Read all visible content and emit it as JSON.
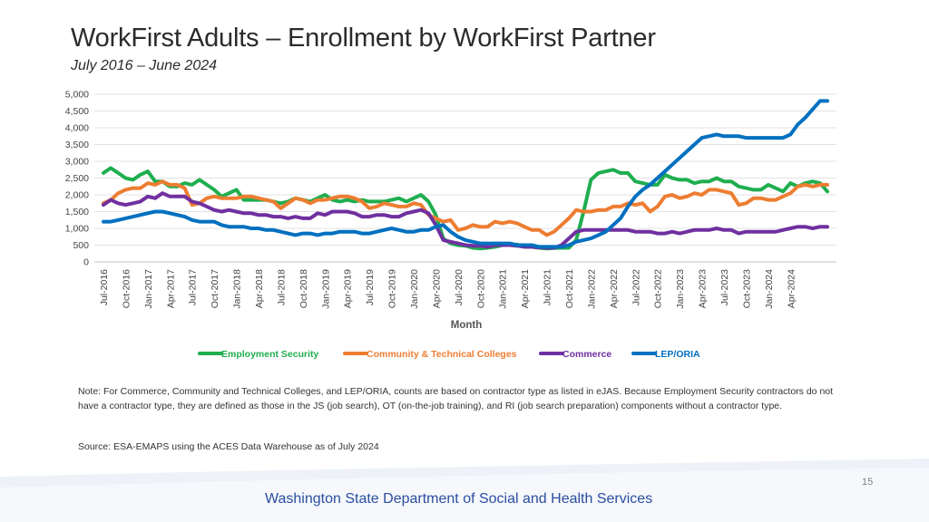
{
  "slide": {
    "title": "WorkFirst Adults – Enrollment by WorkFirst Partner",
    "subtitle": "July 2016 – June 2024",
    "note": "Note: For Commerce, Community and Technical Colleges, and LEP/ORIA, counts are based on contractor type as listed in eJAS. Because Employment Security contractors do not have a contractor type, they are defined as those in the JS (job search), OT (on-the-job training), and RI (job search preparation) components without a contractor type.",
    "source": "Source: ESA-EMAPS using the ACES Data Warehouse as of July 2024",
    "page_number": "15",
    "footer": "Washington State Department of Social and Health Services"
  },
  "chart_data": {
    "type": "line",
    "title": "",
    "xlabel": "Month",
    "ylabel": "",
    "ylim": [
      0,
      5000
    ],
    "yticks": [
      0,
      500,
      1000,
      1500,
      2000,
      2500,
      3000,
      3500,
      4000,
      4500,
      5000
    ],
    "ytick_labels": [
      "0",
      "500",
      "1,000",
      "1,500",
      "2,000",
      "2,500",
      "3,000",
      "3,500",
      "4,000",
      "4,500",
      "5,000"
    ],
    "xtick_labels": [
      "Jul-2016",
      "Oct-2016",
      "Jan-2017",
      "Apr-2017",
      "Jul-2017",
      "Oct-2017",
      "Jan-2018",
      "Apr-2018",
      "Jul-2018",
      "Oct-2018",
      "Jan-2019",
      "Apr-2019",
      "Jul-2019",
      "Oct-2019",
      "Jan-2020",
      "Apr-2020",
      "Jul-2020",
      "Oct-2020",
      "Jan-2021",
      "Apr-2021",
      "Jul-2021",
      "Oct-2021",
      "Jan-2022",
      "Apr-2022",
      "Jul-2022",
      "Oct-2022",
      "Jan-2023",
      "Apr-2023",
      "Jul-2023",
      "Oct-2023",
      "Jan-2024",
      "Apr-2024"
    ],
    "grid": true,
    "legend_position": "bottom",
    "series": [
      {
        "name": "Employment Security",
        "color": "#1fae4f",
        "values": [
          2650,
          2800,
          2650,
          2500,
          2450,
          2600,
          2700,
          2400,
          2400,
          2250,
          2250,
          2350,
          2300,
          2450,
          2300,
          2150,
          1950,
          2050,
          2150,
          1850,
          1850,
          1850,
          1850,
          1800,
          1750,
          1800,
          1900,
          1850,
          1800,
          1900,
          2000,
          1850,
          1800,
          1850,
          1800,
          1850,
          1800,
          1800,
          1800,
          1850,
          1900,
          1800,
          1900,
          2000,
          1800,
          1400,
          700,
          550,
          500,
          480,
          420,
          400,
          420,
          450,
          500,
          500,
          520,
          450,
          450,
          420,
          400,
          410,
          420,
          420,
          650,
          1500,
          2450,
          2650,
          2700,
          2750,
          2650,
          2650,
          2400,
          2350,
          2300,
          2300,
          2600,
          2500,
          2450,
          2450,
          2350,
          2400,
          2400,
          2500,
          2400,
          2400,
          2250,
          2200,
          2150,
          2150,
          2300,
          2200,
          2100,
          2350,
          2250,
          2350,
          2400,
          2350,
          2100
        ]
      },
      {
        "name": "Community & Technical Colleges",
        "color": "#ed7d31",
        "values": [
          1750,
          1850,
          2050,
          2150,
          2200,
          2200,
          2350,
          2300,
          2400,
          2300,
          2300,
          2200,
          1700,
          1750,
          1900,
          1950,
          1900,
          1900,
          1900,
          1950,
          1950,
          1900,
          1850,
          1800,
          1600,
          1750,
          1900,
          1850,
          1750,
          1850,
          1850,
          1900,
          1950,
          1950,
          1900,
          1800,
          1600,
          1650,
          1750,
          1700,
          1650,
          1650,
          1750,
          1700,
          1400,
          1300,
          1200,
          1250,
          950,
          1000,
          1100,
          1050,
          1050,
          1200,
          1150,
          1200,
          1150,
          1050,
          950,
          950,
          800,
          900,
          1100,
          1300,
          1550,
          1500,
          1500,
          1550,
          1550,
          1650,
          1650,
          1750,
          1700,
          1750,
          1500,
          1650,
          1950,
          2000,
          1900,
          1950,
          2050,
          2000,
          2150,
          2150,
          2100,
          2050,
          1700,
          1750,
          1900,
          1900,
          1850,
          1850,
          1950,
          2050,
          2250,
          2300,
          2250,
          2300,
          2300
        ]
      },
      {
        "name": "Commerce",
        "color": "#7030a0",
        "values": [
          1700,
          1850,
          1750,
          1700,
          1750,
          1800,
          1950,
          1900,
          2050,
          1950,
          1950,
          1950,
          1800,
          1750,
          1650,
          1550,
          1500,
          1550,
          1500,
          1450,
          1450,
          1400,
          1400,
          1350,
          1350,
          1300,
          1350,
          1300,
          1300,
          1450,
          1400,
          1500,
          1500,
          1500,
          1450,
          1350,
          1350,
          1400,
          1400,
          1350,
          1350,
          1450,
          1500,
          1550,
          1450,
          1100,
          650,
          600,
          550,
          500,
          480,
          480,
          450,
          500,
          500,
          500,
          480,
          450,
          450,
          430,
          420,
          420,
          500,
          700,
          900,
          950,
          950,
          950,
          950,
          950,
          950,
          950,
          900,
          900,
          900,
          850,
          850,
          900,
          850,
          900,
          950,
          950,
          950,
          1000,
          950,
          950,
          850,
          900,
          900,
          900,
          900,
          900,
          950,
          1000,
          1050,
          1050,
          1000,
          1050,
          1050
        ]
      },
      {
        "name": "LEP/ORIA",
        "color": "#0070c0",
        "values": [
          1200,
          1200,
          1250,
          1300,
          1350,
          1400,
          1450,
          1500,
          1500,
          1450,
          1400,
          1350,
          1250,
          1200,
          1200,
          1200,
          1100,
          1050,
          1050,
          1050,
          1000,
          1000,
          950,
          950,
          900,
          850,
          800,
          850,
          850,
          800,
          850,
          850,
          900,
          900,
          900,
          850,
          850,
          900,
          950,
          1000,
          950,
          900,
          900,
          950,
          950,
          1050,
          1100,
          900,
          750,
          650,
          600,
          550,
          550,
          550,
          550,
          550,
          500,
          500,
          500,
          450,
          450,
          450,
          450,
          500,
          600,
          650,
          700,
          800,
          900,
          1100,
          1300,
          1650,
          1950,
          2150,
          2300,
          2500,
          2700,
          2900,
          3100,
          3300,
          3500,
          3700,
          3750,
          3800,
          3750,
          3750,
          3750,
          3700,
          3700,
          3700,
          3700,
          3700,
          3700,
          3800,
          4100,
          4300,
          4550,
          4800,
          4800
        ]
      }
    ]
  }
}
